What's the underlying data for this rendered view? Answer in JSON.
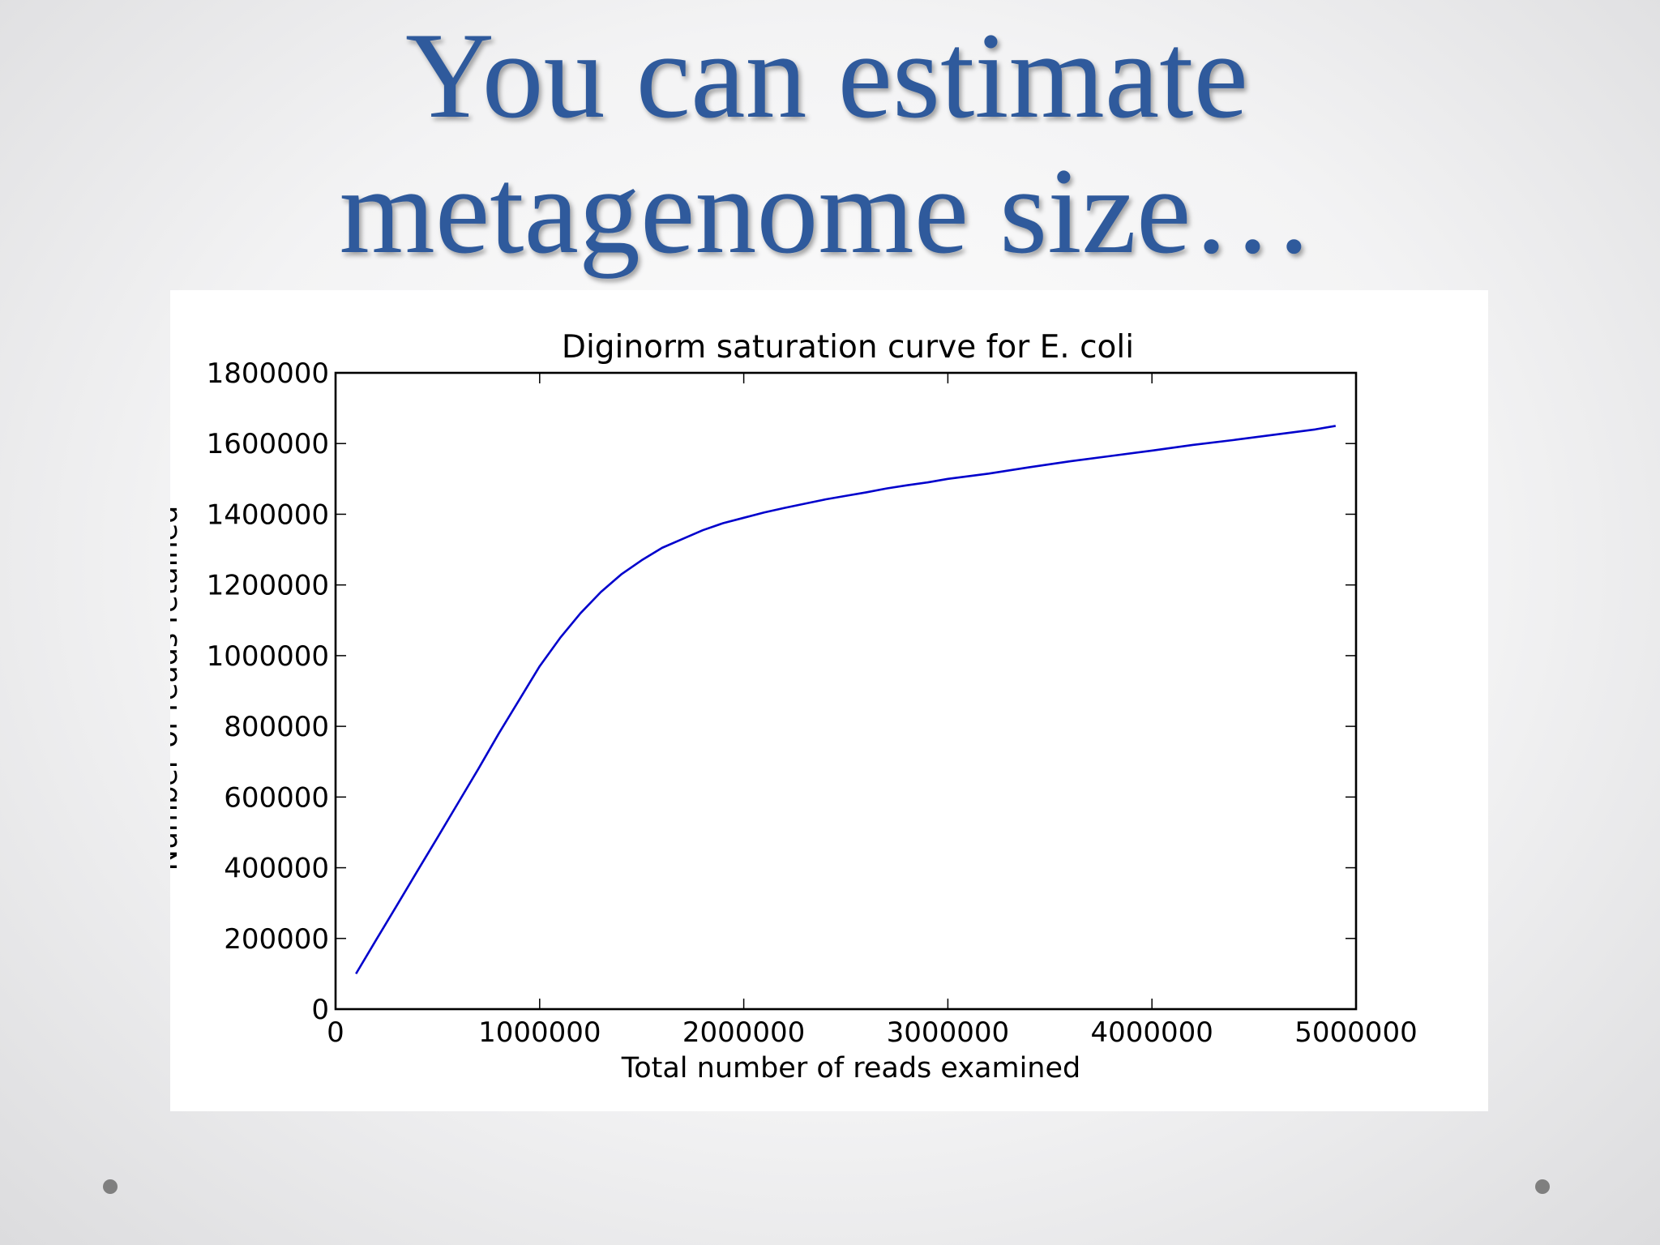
{
  "slide": {
    "title": [
      "You can estimate",
      "metagenome size…"
    ]
  },
  "chart_data": {
    "type": "line",
    "title": "Diginorm saturation curve for E. coli",
    "x_label": "Total number of reads examined",
    "y_label": "Number of reads retained",
    "x": [
      100000,
      200000,
      300000,
      400000,
      500000,
      600000,
      700000,
      800000,
      900000,
      1000000,
      1100000,
      1200000,
      1300000,
      1400000,
      1500000,
      1600000,
      1700000,
      1800000,
      1900000,
      2000000,
      2100000,
      2200000,
      2300000,
      2400000,
      2500000,
      2600000,
      2700000,
      2800000,
      2900000,
      3000000,
      3200000,
      3400000,
      3600000,
      3800000,
      4000000,
      4200000,
      4400000,
      4600000,
      4800000,
      4900000
    ],
    "series": [
      {
        "name": "Number of reads retained",
        "color": "#0000cc",
        "values": [
          100000,
          197000,
          293000,
          390000,
          486000,
          583000,
          680000,
          780000,
          875000,
          970000,
          1050000,
          1120000,
          1180000,
          1230000,
          1270000,
          1305000,
          1330000,
          1355000,
          1375000,
          1390000,
          1405000,
          1418000,
          1430000,
          1442000,
          1452000,
          1462000,
          1473000,
          1482000,
          1490000,
          1500000,
          1515000,
          1533000,
          1550000,
          1565000,
          1580000,
          1596000,
          1610000,
          1625000,
          1640000,
          1650000
        ]
      }
    ],
    "xlim": [
      0,
      5000000
    ],
    "xticks": [
      0,
      1000000,
      2000000,
      3000000,
      4000000,
      5000000
    ],
    "ylim": [
      0,
      1800000
    ],
    "yticks": [
      0,
      200000,
      400000,
      600000,
      800000,
      1000000,
      1200000,
      1400000,
      1600000,
      1800000
    ],
    "grid": false
  }
}
